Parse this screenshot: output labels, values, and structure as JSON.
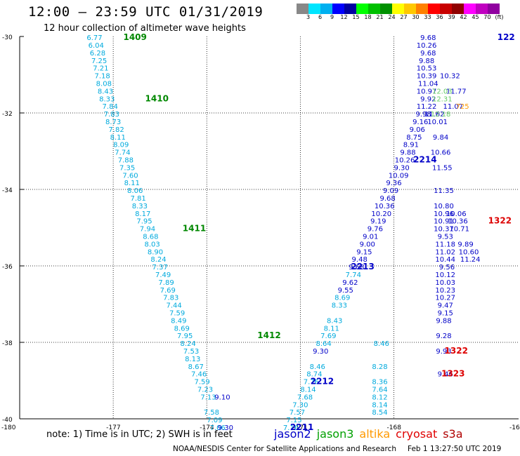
{
  "header": {
    "title": "12:00 – 23:59 UTC 01/31/2019",
    "subtitle": "12 hour collection of altimeter wave heights"
  },
  "legend": {
    "colors": [
      "#888888",
      "#00e5ff",
      "#00b0f0",
      "#0000ff",
      "#0000a0",
      "#00ff00",
      "#00c000",
      "#009000",
      "#ffff00",
      "#ffc800",
      "#ff8000",
      "#ff0000",
      "#c80000",
      "#900000",
      "#ff00ff",
      "#c000c0",
      "#9000a0",
      "#ffffff"
    ],
    "labels": [
      "3",
      "6",
      "9",
      "12",
      "15",
      "18",
      "21",
      "24",
      "27",
      "30",
      "33",
      "36",
      "39",
      "42",
      "45",
      "70",
      "(ft)"
    ]
  },
  "footer": {
    "note": "note:  1) Time is in UTC;  2) SWH is in feet",
    "satellites": [
      {
        "name": "jason2",
        "color": "#0000c8"
      },
      {
        "name": "jason3",
        "color": "#00a000"
      },
      {
        "name": "altika",
        "color": "#ff9900"
      },
      {
        "name": "cryosat",
        "color": "#e00000"
      },
      {
        "name": "s3a",
        "color": "#b00000"
      }
    ],
    "credit": "NOAA/NESDIS Center for Satellite Applications and Research",
    "timestamp": "Feb  1 13:27:50 UTC 2019"
  },
  "chart_data": {
    "type": "scatter",
    "xlim": [
      -180,
      -164
    ],
    "ylim": [
      -40,
      -30
    ],
    "x_ticks": [
      "-180",
      "-177",
      "-174",
      "-171",
      "-168",
      "-164"
    ],
    "y_ticks": [
      "-30",
      "-32",
      "-34",
      "-36",
      "-38",
      "-40"
    ],
    "series": [
      {
        "name": "jason3",
        "color": "#00aadd",
        "points": [
          {
            "lon": -177.6,
            "lat": -30.02,
            "value": "6.77"
          },
          {
            "lon": -177.55,
            "lat": -30.22,
            "value": "6.04"
          },
          {
            "lon": -177.5,
            "lat": -30.42,
            "value": "6.28"
          },
          {
            "lon": -177.45,
            "lat": -30.62,
            "value": "7.25"
          },
          {
            "lon": -177.4,
            "lat": -30.82,
            "value": "7.21"
          },
          {
            "lon": -177.35,
            "lat": -31.02,
            "value": "7.18"
          },
          {
            "lon": -177.3,
            "lat": -31.22,
            "value": "8.08"
          },
          {
            "lon": -177.25,
            "lat": -31.42,
            "value": "8.43"
          },
          {
            "lon": -177.2,
            "lat": -31.62,
            "value": "8.33"
          },
          {
            "lon": -177.1,
            "lat": -31.82,
            "value": "7.84"
          },
          {
            "lon": -177.05,
            "lat": -32.02,
            "value": "7.83"
          },
          {
            "lon": -177.0,
            "lat": -32.22,
            "value": "8.73"
          },
          {
            "lon": -176.9,
            "lat": -32.42,
            "value": "7.82"
          },
          {
            "lon": -176.85,
            "lat": -32.62,
            "value": "8.11"
          },
          {
            "lon": -176.75,
            "lat": -32.82,
            "value": "8.09"
          },
          {
            "lon": -176.7,
            "lat": -33.02,
            "value": "7.74"
          },
          {
            "lon": -176.6,
            "lat": -33.22,
            "value": "7.88"
          },
          {
            "lon": -176.55,
            "lat": -33.42,
            "value": "7.35"
          },
          {
            "lon": -176.45,
            "lat": -33.62,
            "value": "7.60"
          },
          {
            "lon": -176.4,
            "lat": -33.82,
            "value": "8.11"
          },
          {
            "lon": -176.3,
            "lat": -34.02,
            "value": "8.06"
          },
          {
            "lon": -176.2,
            "lat": -34.22,
            "value": "7.81"
          },
          {
            "lon": -176.15,
            "lat": -34.42,
            "value": "8.33"
          },
          {
            "lon": -176.05,
            "lat": -34.62,
            "value": "8.17"
          },
          {
            "lon": -176.0,
            "lat": -34.82,
            "value": "7.95"
          },
          {
            "lon": -175.9,
            "lat": -35.02,
            "value": "7.94"
          },
          {
            "lon": -175.8,
            "lat": -35.22,
            "value": "8.68"
          },
          {
            "lon": -175.75,
            "lat": -35.42,
            "value": "8.03"
          },
          {
            "lon": -175.65,
            "lat": -35.62,
            "value": "8.90"
          },
          {
            "lon": -175.55,
            "lat": -35.82,
            "value": "8.24"
          },
          {
            "lon": -175.5,
            "lat": -36.02,
            "value": "7.37"
          },
          {
            "lon": -175.4,
            "lat": -36.22,
            "value": "7.49"
          },
          {
            "lon": -175.3,
            "lat": -36.42,
            "value": "7.89"
          },
          {
            "lon": -175.25,
            "lat": -36.62,
            "value": "7.69"
          },
          {
            "lon": -175.15,
            "lat": -36.82,
            "value": "7.83"
          },
          {
            "lon": -175.05,
            "lat": -37.02,
            "value": "7.44"
          },
          {
            "lon": -174.95,
            "lat": -37.22,
            "value": "7.59"
          },
          {
            "lon": -174.9,
            "lat": -37.42,
            "value": "8.49"
          },
          {
            "lon": -174.8,
            "lat": -37.62,
            "value": "8.69"
          },
          {
            "lon": -174.7,
            "lat": -37.82,
            "value": "7.95"
          },
          {
            "lon": -174.6,
            "lat": -38.02,
            "value": "8.24"
          },
          {
            "lon": -174.5,
            "lat": -38.22,
            "value": "7.53"
          },
          {
            "lon": -174.45,
            "lat": -38.42,
            "value": "8.13"
          },
          {
            "lon": -174.35,
            "lat": -38.62,
            "value": "8.67"
          },
          {
            "lon": -174.25,
            "lat": -38.82,
            "value": "7.46"
          },
          {
            "lon": -174.15,
            "lat": -39.02,
            "value": "7.59"
          },
          {
            "lon": -174.05,
            "lat": -39.22,
            "value": "7.23"
          },
          {
            "lon": -173.95,
            "lat": -39.42,
            "value": "7.13"
          },
          {
            "lon": -173.85,
            "lat": -39.82,
            "value": "7.58"
          },
          {
            "lon": -173.75,
            "lat": -40.02,
            "value": "7.09"
          },
          {
            "lon": -173.65,
            "lat": -40.22,
            "value": "7.06"
          },
          {
            "lon": -171.3,
            "lat": -40.22,
            "value": "7.16"
          },
          {
            "lon": -171.2,
            "lat": -40.02,
            "value": "7.15"
          },
          {
            "lon": -171.1,
            "lat": -39.82,
            "value": "7.57"
          },
          {
            "lon": -171.0,
            "lat": -39.62,
            "value": "7.30"
          },
          {
            "lon": -170.85,
            "lat": -39.42,
            "value": "7.68"
          },
          {
            "lon": -170.75,
            "lat": -39.22,
            "value": "8.14"
          },
          {
            "lon": -170.65,
            "lat": -39.02,
            "value": "7.76"
          },
          {
            "lon": -170.55,
            "lat": -38.82,
            "value": "8.74"
          },
          {
            "lon": -170.45,
            "lat": -38.62,
            "value": "8.46"
          },
          {
            "lon": -170.25,
            "lat": -38.02,
            "value": "8.64"
          },
          {
            "lon": -170.1,
            "lat": -37.82,
            "value": "7.69"
          },
          {
            "lon": -170.0,
            "lat": -37.62,
            "value": "8.11"
          },
          {
            "lon": -169.9,
            "lat": -37.42,
            "value": "8.43"
          },
          {
            "lon": -169.75,
            "lat": -37.02,
            "value": "8.33"
          },
          {
            "lon": -169.65,
            "lat": -36.82,
            "value": "8.69"
          },
          {
            "lon": -169.3,
            "lat": -36.22,
            "value": "7.74"
          },
          {
            "lon": -168.4,
            "lat": -38.02,
            "value": "8.46"
          },
          {
            "lon": -168.45,
            "lat": -38.62,
            "value": "8.28"
          },
          {
            "lon": -168.45,
            "lat": -39.02,
            "value": "8.36"
          },
          {
            "lon": -168.45,
            "lat": -39.22,
            "value": "7.64"
          },
          {
            "lon": -168.45,
            "lat": -39.42,
            "value": "8.12"
          },
          {
            "lon": -168.45,
            "lat": -39.62,
            "value": "8.14"
          },
          {
            "lon": -168.45,
            "lat": -39.82,
            "value": "8.54"
          }
        ]
      },
      {
        "name": "jason2",
        "color": "#0000c8",
        "points": [
          {
            "lon": -173.5,
            "lat": -39.42,
            "value": "9.10"
          },
          {
            "lon": -173.4,
            "lat": -40.22,
            "value": "9.30"
          },
          {
            "lon": -170.35,
            "lat": -38.22,
            "value": "9.30"
          },
          {
            "lon": -169.55,
            "lat": -36.62,
            "value": "9.55"
          },
          {
            "lon": -169.4,
            "lat": -36.42,
            "value": "9.62"
          },
          {
            "lon": -169.2,
            "lat": -36.02,
            "value": "9.68"
          },
          {
            "lon": -169.1,
            "lat": -35.82,
            "value": "9.48"
          },
          {
            "lon": -168.95,
            "lat": -35.62,
            "value": "9.15"
          },
          {
            "lon": -168.85,
            "lat": -35.42,
            "value": "9.00"
          },
          {
            "lon": -168.75,
            "lat": -35.22,
            "value": "9.01"
          },
          {
            "lon": -168.6,
            "lat": -35.02,
            "value": "9.76"
          },
          {
            "lon": -168.5,
            "lat": -34.82,
            "value": "9.19"
          },
          {
            "lon": -168.4,
            "lat": -34.62,
            "value": "10.20"
          },
          {
            "lon": -168.3,
            "lat": -34.42,
            "value": "10.36"
          },
          {
            "lon": -168.2,
            "lat": -34.22,
            "value": "9.68"
          },
          {
            "lon": -168.1,
            "lat": -34.02,
            "value": "9.09"
          },
          {
            "lon": -168.0,
            "lat": -33.82,
            "value": "9.36"
          },
          {
            "lon": -167.85,
            "lat": -33.62,
            "value": "10.09"
          },
          {
            "lon": -167.75,
            "lat": -33.42,
            "value": "9.30"
          },
          {
            "lon": -167.65,
            "lat": -33.22,
            "value": "10.26"
          },
          {
            "lon": -167.55,
            "lat": -33.02,
            "value": "9.88"
          },
          {
            "lon": -167.45,
            "lat": -32.82,
            "value": "8.91"
          },
          {
            "lon": -167.35,
            "lat": -32.62,
            "value": "8.75"
          },
          {
            "lon": -167.25,
            "lat": -32.42,
            "value": "9.06"
          },
          {
            "lon": -167.15,
            "lat": -32.22,
            "value": "9.16"
          },
          {
            "lon": -167.05,
            "lat": -32.02,
            "value": "9.98"
          },
          {
            "lon": -166.95,
            "lat": -31.82,
            "value": "11.22"
          },
          {
            "lon": -166.9,
            "lat": -31.62,
            "value": "9.92"
          },
          {
            "lon": -166.9,
            "lat": -30.02,
            "value": "9.68"
          },
          {
            "lon": -166.95,
            "lat": -30.22,
            "value": "10.26"
          },
          {
            "lon": -166.9,
            "lat": -30.42,
            "value": "9.68"
          },
          {
            "lon": -166.95,
            "lat": -30.62,
            "value": "9.88"
          },
          {
            "lon": -166.95,
            "lat": -30.82,
            "value": "10.53"
          },
          {
            "lon": -166.95,
            "lat": -31.02,
            "value": "10.39"
          },
          {
            "lon": -166.9,
            "lat": -31.22,
            "value": "11.04"
          },
          {
            "lon": -166.95,
            "lat": -31.42,
            "value": "10.97"
          },
          {
            "lon": -166.3,
            "lat": -36.02,
            "value": "9.56"
          },
          {
            "lon": -166.35,
            "lat": -36.22,
            "value": "10.12"
          },
          {
            "lon": -166.35,
            "lat": -36.42,
            "value": "10.03"
          },
          {
            "lon": -166.35,
            "lat": -36.62,
            "value": "10.23"
          },
          {
            "lon": -166.35,
            "lat": -36.82,
            "value": "10.27"
          },
          {
            "lon": -166.35,
            "lat": -37.02,
            "value": "9.47"
          },
          {
            "lon": -166.35,
            "lat": -37.22,
            "value": "9.15"
          },
          {
            "lon": -166.4,
            "lat": -37.42,
            "value": "9.88"
          },
          {
            "lon": -166.4,
            "lat": -37.82,
            "value": "9.28"
          },
          {
            "lon": -166.4,
            "lat": -38.22,
            "value": "9.93"
          },
          {
            "lon": -166.35,
            "lat": -38.82,
            "value": "9.46"
          },
          {
            "lon": -166.35,
            "lat": -35.82,
            "value": "10.44"
          },
          {
            "lon": -166.35,
            "lat": -35.62,
            "value": "11.02"
          },
          {
            "lon": -166.35,
            "lat": -35.42,
            "value": "11.18"
          },
          {
            "lon": -166.35,
            "lat": -35.22,
            "value": "9.53"
          },
          {
            "lon": -166.4,
            "lat": -35.02,
            "value": "10.37"
          },
          {
            "lon": -166.4,
            "lat": -34.82,
            "value": "10.91"
          },
          {
            "lon": -166.4,
            "lat": -34.62,
            "value": "10.96"
          },
          {
            "lon": -166.4,
            "lat": -34.42,
            "value": "10.80"
          },
          {
            "lon": -165.6,
            "lat": -35.62,
            "value": "10.60"
          },
          {
            "lon": -165.55,
            "lat": -35.82,
            "value": "11.24"
          },
          {
            "lon": -165.7,
            "lat": -35.42,
            "value": "9.89"
          },
          {
            "lon": -165.9,
            "lat": -35.02,
            "value": "10.71"
          },
          {
            "lon": -165.95,
            "lat": -34.82,
            "value": "10.36"
          },
          {
            "lon": -166.0,
            "lat": -34.62,
            "value": "10.06"
          }
        ]
      }
    ],
    "track_labels": [
      {
        "lon": -176.3,
        "lat": -30.02,
        "text": "1409",
        "color": "#008800"
      },
      {
        "lon": -175.6,
        "lat": -31.62,
        "text": "1410",
        "color": "#008800"
      },
      {
        "lon": -174.4,
        "lat": -35.02,
        "text": "1411",
        "color": "#008800"
      },
      {
        "lon": -172.0,
        "lat": -37.82,
        "text": "1412",
        "color": "#008800"
      },
      {
        "lon": -169.0,
        "lat": -36.02,
        "text": "2213",
        "color": "#0000c8"
      },
      {
        "lon": -167.0,
        "lat": -33.22,
        "text": "2214",
        "color": "#0000c8"
      },
      {
        "lon": -170.3,
        "lat": -39.02,
        "text": "2212",
        "color": "#0000c8"
      },
      {
        "lon": -170.95,
        "lat": -40.22,
        "text": "2211",
        "color": "#0000c8"
      },
      {
        "lon": -166.0,
        "lat": -38.22,
        "text": "1322",
        "color": "#dd0000"
      },
      {
        "lon": -166.1,
        "lat": -38.82,
        "text": "1323",
        "color": "#dd0000"
      },
      {
        "lon": -164.6,
        "lat": -34.82,
        "text": "1322",
        "color": "#dd0000"
      },
      {
        "lon": -164.4,
        "lat": -30.02,
        "text": "122",
        "color": "#0000c8"
      }
    ],
    "extra_points": [
      {
        "lon": -166.7,
        "lat": -32.02,
        "value": "11.62",
        "color": "#0000c8"
      },
      {
        "lon": -166.6,
        "lat": -32.22,
        "value": "10.01",
        "color": "#0000c8"
      },
      {
        "lon": -166.5,
        "lat": -32.62,
        "value": "9.84",
        "color": "#0000c8"
      },
      {
        "lon": -166.5,
        "lat": -33.02,
        "value": "10.66",
        "color": "#0000c8"
      },
      {
        "lon": -166.45,
        "lat": -33.42,
        "value": "11.55",
        "color": "#0000c8"
      },
      {
        "lon": -166.4,
        "lat": -34.02,
        "value": "11.35",
        "color": "#0000c8"
      },
      {
        "lon": -166.1,
        "lat": -31.82,
        "value": "11.07",
        "color": "#0000c8"
      },
      {
        "lon": -166.2,
        "lat": -31.02,
        "value": "10.32",
        "color": "#0000c8"
      },
      {
        "lon": -166.0,
        "lat": -31.42,
        "value": "11.77",
        "color": "#0000c8"
      },
      {
        "lon": -166.45,
        "lat": -31.42,
        "value": "12.03",
        "color": "#66cc66"
      },
      {
        "lon": -166.45,
        "lat": -31.62,
        "value": "12.31",
        "color": "#66cc66"
      },
      {
        "lon": -166.5,
        "lat": -32.02,
        "value": "12.18",
        "color": "#66cc66"
      },
      {
        "lon": -165.8,
        "lat": -31.82,
        "value": "725",
        "color": "#ff9900"
      }
    ]
  }
}
